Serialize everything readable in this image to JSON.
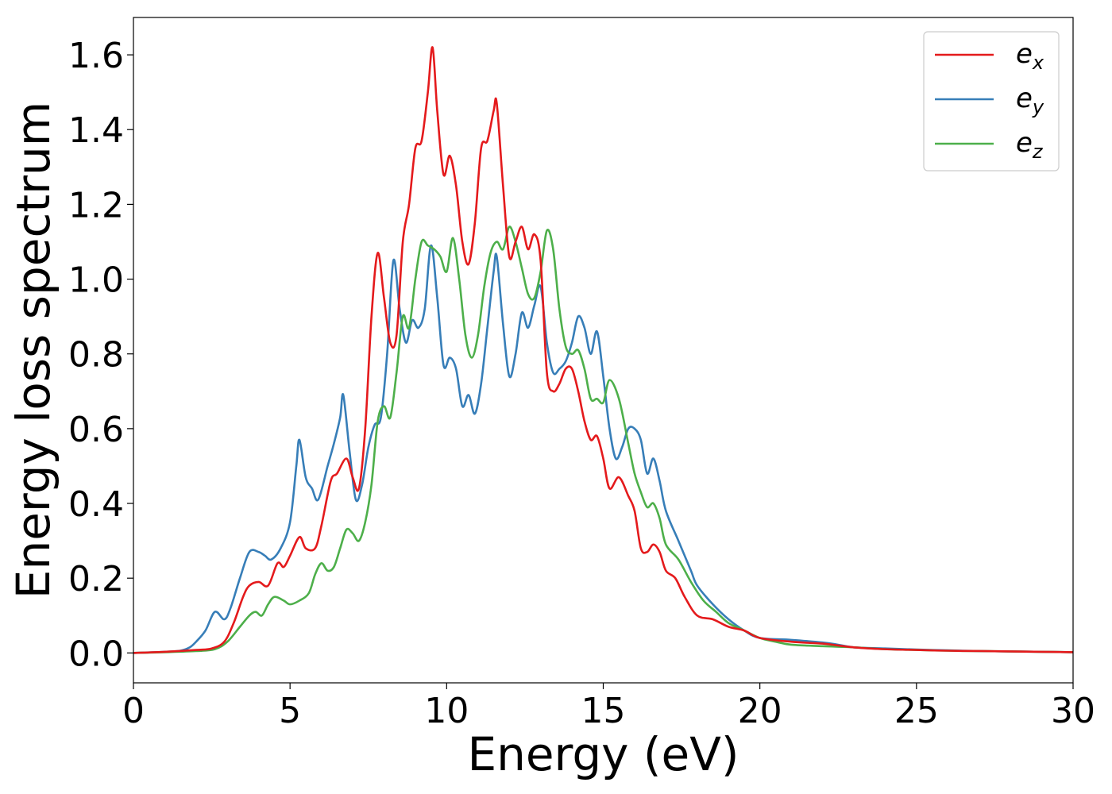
{
  "chart_data": {
    "type": "line",
    "title": "",
    "xlabel": "Energy (eV)",
    "ylabel": "Energy loss spectrum",
    "xlim": [
      0,
      30
    ],
    "ylim": [
      -0.08,
      1.7
    ],
    "x_ticks": [
      0,
      5,
      10,
      15,
      20,
      25,
      30
    ],
    "y_ticks": [
      0.0,
      0.2,
      0.4,
      0.6,
      0.8,
      1.0,
      1.2,
      1.4,
      1.6
    ],
    "x_tick_labels": [
      "0",
      "5",
      "10",
      "15",
      "20",
      "25",
      "30"
    ],
    "y_tick_labels": [
      "0.0",
      "0.2",
      "0.4",
      "0.6",
      "0.8",
      "1.0",
      "1.2",
      "1.4",
      "1.6"
    ],
    "grid": false,
    "legend_position": "top-right",
    "series": [
      {
        "name": "e_x",
        "label_base": "e",
        "label_sub": "x",
        "color": "#e41a1c",
        "points": [
          [
            0,
            0
          ],
          [
            1,
            0.003
          ],
          [
            2,
            0.008
          ],
          [
            2.5,
            0.012
          ],
          [
            2.9,
            0.03
          ],
          [
            3.2,
            0.08
          ],
          [
            3.5,
            0.15
          ],
          [
            3.7,
            0.18
          ],
          [
            4.0,
            0.19
          ],
          [
            4.3,
            0.18
          ],
          [
            4.6,
            0.24
          ],
          [
            4.8,
            0.23
          ],
          [
            5.0,
            0.26
          ],
          [
            5.3,
            0.31
          ],
          [
            5.5,
            0.28
          ],
          [
            5.8,
            0.28
          ],
          [
            6.0,
            0.34
          ],
          [
            6.3,
            0.46
          ],
          [
            6.5,
            0.48
          ],
          [
            6.8,
            0.52
          ],
          [
            7.0,
            0.47
          ],
          [
            7.2,
            0.44
          ],
          [
            7.4,
            0.6
          ],
          [
            7.6,
            0.9
          ],
          [
            7.8,
            1.07
          ],
          [
            8.0,
            0.95
          ],
          [
            8.2,
            0.83
          ],
          [
            8.4,
            0.85
          ],
          [
            8.6,
            1.1
          ],
          [
            8.8,
            1.2
          ],
          [
            9.0,
            1.35
          ],
          [
            9.2,
            1.37
          ],
          [
            9.4,
            1.5
          ],
          [
            9.55,
            1.62
          ],
          [
            9.7,
            1.45
          ],
          [
            9.9,
            1.28
          ],
          [
            10.1,
            1.33
          ],
          [
            10.3,
            1.25
          ],
          [
            10.5,
            1.1
          ],
          [
            10.7,
            1.04
          ],
          [
            10.9,
            1.15
          ],
          [
            11.1,
            1.35
          ],
          [
            11.3,
            1.37
          ],
          [
            11.5,
            1.45
          ],
          [
            11.6,
            1.47
          ],
          [
            11.8,
            1.25
          ],
          [
            12.0,
            1.06
          ],
          [
            12.2,
            1.1
          ],
          [
            12.4,
            1.14
          ],
          [
            12.6,
            1.08
          ],
          [
            12.8,
            1.12
          ],
          [
            13.0,
            1.05
          ],
          [
            13.2,
            0.75
          ],
          [
            13.4,
            0.7
          ],
          [
            13.6,
            0.72
          ],
          [
            13.8,
            0.76
          ],
          [
            14.0,
            0.76
          ],
          [
            14.2,
            0.7
          ],
          [
            14.4,
            0.62
          ],
          [
            14.6,
            0.57
          ],
          [
            14.8,
            0.58
          ],
          [
            15.0,
            0.52
          ],
          [
            15.2,
            0.44
          ],
          [
            15.5,
            0.47
          ],
          [
            15.8,
            0.42
          ],
          [
            16.0,
            0.38
          ],
          [
            16.2,
            0.28
          ],
          [
            16.4,
            0.27
          ],
          [
            16.6,
            0.29
          ],
          [
            16.8,
            0.27
          ],
          [
            17.0,
            0.22
          ],
          [
            17.3,
            0.2
          ],
          [
            17.6,
            0.15
          ],
          [
            18.0,
            0.1
          ],
          [
            18.5,
            0.09
          ],
          [
            19.0,
            0.07
          ],
          [
            19.5,
            0.06
          ],
          [
            20,
            0.04
          ],
          [
            21,
            0.03
          ],
          [
            22,
            0.025
          ],
          [
            22.5,
            0.02
          ],
          [
            23,
            0.015
          ],
          [
            24,
            0.01
          ],
          [
            25,
            0.008
          ],
          [
            26,
            0.006
          ],
          [
            27,
            0.005
          ],
          [
            28,
            0.004
          ],
          [
            29,
            0.003
          ],
          [
            30,
            0.002
          ]
        ]
      },
      {
        "name": "e_y",
        "label_base": "e",
        "label_sub": "y",
        "color": "#377eb8",
        "points": [
          [
            0,
            0
          ],
          [
            1,
            0.003
          ],
          [
            1.5,
            0.006
          ],
          [
            1.8,
            0.015
          ],
          [
            2.0,
            0.03
          ],
          [
            2.3,
            0.06
          ],
          [
            2.6,
            0.11
          ],
          [
            2.9,
            0.09
          ],
          [
            3.1,
            0.12
          ],
          [
            3.4,
            0.2
          ],
          [
            3.7,
            0.27
          ],
          [
            4.0,
            0.27
          ],
          [
            4.2,
            0.26
          ],
          [
            4.4,
            0.25
          ],
          [
            4.7,
            0.28
          ],
          [
            5.0,
            0.35
          ],
          [
            5.2,
            0.5
          ],
          [
            5.3,
            0.57
          ],
          [
            5.5,
            0.47
          ],
          [
            5.7,
            0.44
          ],
          [
            5.9,
            0.41
          ],
          [
            6.2,
            0.5
          ],
          [
            6.4,
            0.56
          ],
          [
            6.6,
            0.63
          ],
          [
            6.7,
            0.69
          ],
          [
            6.9,
            0.54
          ],
          [
            7.1,
            0.41
          ],
          [
            7.3,
            0.45
          ],
          [
            7.5,
            0.55
          ],
          [
            7.7,
            0.61
          ],
          [
            7.9,
            0.63
          ],
          [
            8.1,
            0.8
          ],
          [
            8.3,
            1.05
          ],
          [
            8.5,
            0.92
          ],
          [
            8.7,
            0.83
          ],
          [
            8.9,
            0.89
          ],
          [
            9.1,
            0.87
          ],
          [
            9.3,
            0.92
          ],
          [
            9.5,
            1.09
          ],
          [
            9.7,
            0.95
          ],
          [
            9.9,
            0.77
          ],
          [
            10.1,
            0.79
          ],
          [
            10.3,
            0.76
          ],
          [
            10.5,
            0.66
          ],
          [
            10.7,
            0.69
          ],
          [
            10.9,
            0.64
          ],
          [
            11.1,
            0.72
          ],
          [
            11.3,
            0.87
          ],
          [
            11.5,
            1.02
          ],
          [
            11.6,
            1.06
          ],
          [
            11.8,
            0.88
          ],
          [
            12.0,
            0.74
          ],
          [
            12.2,
            0.8
          ],
          [
            12.4,
            0.91
          ],
          [
            12.6,
            0.87
          ],
          [
            12.8,
            0.93
          ],
          [
            13.0,
            0.98
          ],
          [
            13.2,
            0.83
          ],
          [
            13.4,
            0.75
          ],
          [
            13.6,
            0.76
          ],
          [
            13.8,
            0.78
          ],
          [
            14.0,
            0.83
          ],
          [
            14.2,
            0.9
          ],
          [
            14.4,
            0.87
          ],
          [
            14.6,
            0.8
          ],
          [
            14.8,
            0.86
          ],
          [
            15.0,
            0.74
          ],
          [
            15.2,
            0.6
          ],
          [
            15.4,
            0.52
          ],
          [
            15.6,
            0.55
          ],
          [
            15.8,
            0.6
          ],
          [
            16.0,
            0.6
          ],
          [
            16.2,
            0.57
          ],
          [
            16.4,
            0.48
          ],
          [
            16.6,
            0.52
          ],
          [
            16.8,
            0.46
          ],
          [
            17.0,
            0.38
          ],
          [
            17.4,
            0.3
          ],
          [
            17.8,
            0.22
          ],
          [
            18.0,
            0.18
          ],
          [
            18.5,
            0.13
          ],
          [
            19.0,
            0.09
          ],
          [
            19.5,
            0.06
          ],
          [
            20,
            0.04
          ],
          [
            21,
            0.035
          ],
          [
            22,
            0.028
          ],
          [
            22.5,
            0.022
          ],
          [
            23,
            0.015
          ],
          [
            24,
            0.012
          ],
          [
            25,
            0.009
          ],
          [
            26,
            0.007
          ],
          [
            27,
            0.005
          ],
          [
            28,
            0.004
          ],
          [
            29,
            0.003
          ],
          [
            30,
            0.002
          ]
        ]
      },
      {
        "name": "e_z",
        "label_base": "e",
        "label_sub": "z",
        "color": "#4daf4a",
        "points": [
          [
            0,
            0
          ],
          [
            1,
            0.002
          ],
          [
            2,
            0.005
          ],
          [
            2.6,
            0.01
          ],
          [
            3.0,
            0.03
          ],
          [
            3.4,
            0.07
          ],
          [
            3.7,
            0.1
          ],
          [
            3.9,
            0.11
          ],
          [
            4.1,
            0.1
          ],
          [
            4.3,
            0.13
          ],
          [
            4.5,
            0.15
          ],
          [
            4.8,
            0.14
          ],
          [
            5.0,
            0.13
          ],
          [
            5.3,
            0.14
          ],
          [
            5.6,
            0.16
          ],
          [
            5.8,
            0.21
          ],
          [
            6.0,
            0.24
          ],
          [
            6.2,
            0.22
          ],
          [
            6.4,
            0.23
          ],
          [
            6.6,
            0.28
          ],
          [
            6.8,
            0.33
          ],
          [
            7.0,
            0.32
          ],
          [
            7.2,
            0.3
          ],
          [
            7.4,
            0.35
          ],
          [
            7.6,
            0.45
          ],
          [
            7.8,
            0.62
          ],
          [
            8.0,
            0.66
          ],
          [
            8.2,
            0.63
          ],
          [
            8.4,
            0.75
          ],
          [
            8.6,
            0.9
          ],
          [
            8.8,
            0.87
          ],
          [
            9.0,
            1.0
          ],
          [
            9.2,
            1.1
          ],
          [
            9.4,
            1.09
          ],
          [
            9.6,
            1.08
          ],
          [
            9.8,
            1.06
          ],
          [
            10.0,
            1.02
          ],
          [
            10.2,
            1.11
          ],
          [
            10.4,
            1.0
          ],
          [
            10.6,
            0.85
          ],
          [
            10.8,
            0.79
          ],
          [
            11.0,
            0.85
          ],
          [
            11.2,
            0.98
          ],
          [
            11.4,
            1.07
          ],
          [
            11.6,
            1.1
          ],
          [
            11.8,
            1.08
          ],
          [
            12.0,
            1.14
          ],
          [
            12.2,
            1.1
          ],
          [
            12.4,
            1.03
          ],
          [
            12.6,
            0.96
          ],
          [
            12.8,
            0.95
          ],
          [
            13.0,
            1.02
          ],
          [
            13.2,
            1.13
          ],
          [
            13.4,
            1.08
          ],
          [
            13.6,
            0.92
          ],
          [
            13.8,
            0.82
          ],
          [
            14.0,
            0.8
          ],
          [
            14.2,
            0.81
          ],
          [
            14.4,
            0.76
          ],
          [
            14.6,
            0.68
          ],
          [
            14.8,
            0.68
          ],
          [
            15.0,
            0.67
          ],
          [
            15.2,
            0.73
          ],
          [
            15.5,
            0.68
          ],
          [
            15.8,
            0.56
          ],
          [
            16.0,
            0.48
          ],
          [
            16.2,
            0.43
          ],
          [
            16.4,
            0.39
          ],
          [
            16.6,
            0.4
          ],
          [
            16.8,
            0.36
          ],
          [
            17.0,
            0.29
          ],
          [
            17.4,
            0.25
          ],
          [
            17.8,
            0.19
          ],
          [
            18.2,
            0.14
          ],
          [
            18.6,
            0.11
          ],
          [
            19.0,
            0.08
          ],
          [
            19.5,
            0.06
          ],
          [
            20,
            0.04
          ],
          [
            20.5,
            0.03
          ],
          [
            21,
            0.022
          ],
          [
            22,
            0.018
          ],
          [
            23,
            0.015
          ],
          [
            24,
            0.01
          ],
          [
            25,
            0.008
          ],
          [
            26,
            0.006
          ],
          [
            27,
            0.005
          ],
          [
            28,
            0.004
          ],
          [
            29,
            0.003
          ],
          [
            30,
            0.002
          ]
        ]
      }
    ]
  }
}
